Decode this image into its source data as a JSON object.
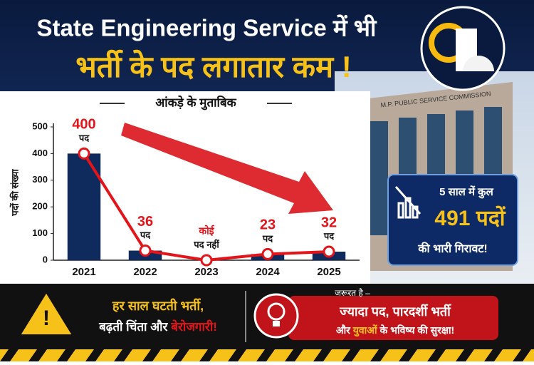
{
  "header": {
    "title_line1": "State Engineering Service में भी",
    "title_line2": "भर्ती के पद लगातार कम !",
    "subtitle": "आंकड़े के मुताबिक"
  },
  "building_sign": "M.P. PUBLIC SERVICE COMMISSION",
  "chart_data": {
    "type": "bar",
    "y_label": "पदों की संख्या",
    "categories": [
      "2021",
      "2022",
      "2023",
      "2024",
      "2025"
    ],
    "values": [
      400,
      36,
      0,
      23,
      32
    ],
    "value_labels": [
      "400",
      "36",
      "कोई",
      "23",
      "32"
    ],
    "value_sublabels": [
      "पद",
      "पद",
      "पद नहीं",
      "पद",
      "पद"
    ],
    "color": "#0f2a5c",
    "line_color": "#e3151a",
    "ylim": [
      0,
      500
    ],
    "yticks": [
      0,
      100,
      200,
      300,
      400,
      500
    ],
    "grid": false
  },
  "callout": {
    "line1": "5 साल में कुल",
    "line2": "491 पदों",
    "line3": "की भारी गिरावट!"
  },
  "footer": {
    "left_line1": "हर साल घटती भर्ती,",
    "left_line2": [
      "बढ़ती चिंता और ",
      "बेरोजगारी!"
    ],
    "right_heading": "जरूरत है –",
    "right_line1": "ज्यादा पद, पारदर्शी भर्ती",
    "right_line2": [
      "और ",
      "युवाओं",
      " के भविष्य की सुरक्षा!"
    ]
  }
}
